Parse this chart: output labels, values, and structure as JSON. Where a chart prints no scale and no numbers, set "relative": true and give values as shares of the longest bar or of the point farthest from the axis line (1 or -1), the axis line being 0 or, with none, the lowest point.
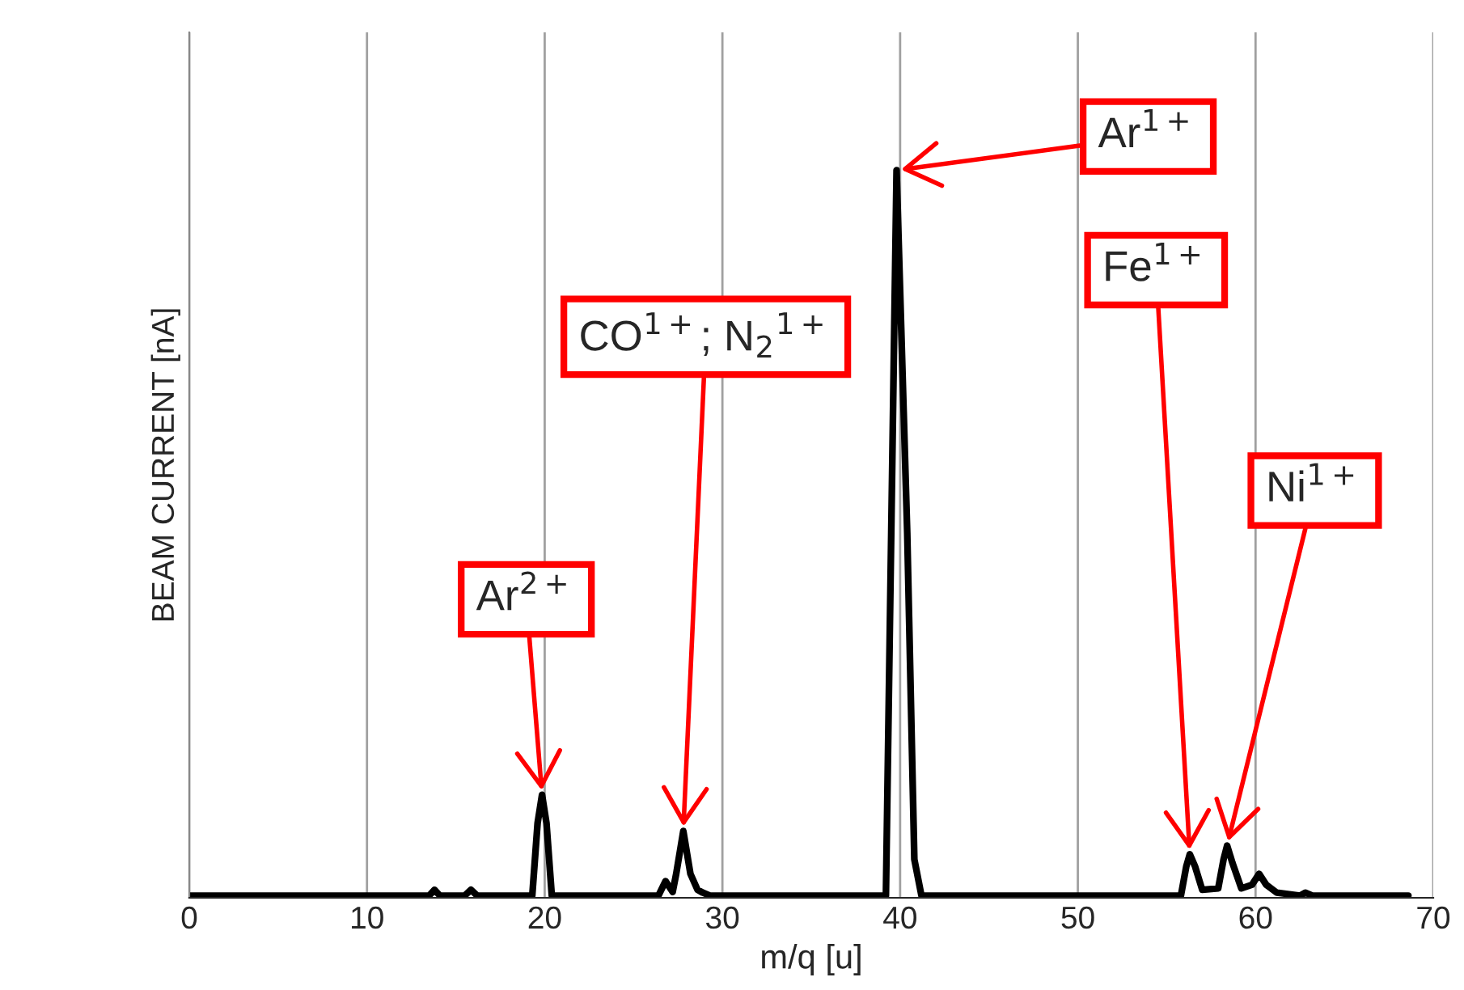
{
  "chart_data": {
    "type": "line",
    "xlabel": "m/q [u]",
    "ylabel": "BEAM CURRENT [nA]",
    "relative": true,
    "xlim": [
      0,
      70
    ],
    "xticks": [
      0,
      10,
      20,
      30,
      40,
      50,
      60,
      70
    ],
    "grid": "x",
    "marker": "none",
    "line_style": "solid",
    "series": [
      {
        "color": "#000000",
        "x": [
          0,
          13.5,
          13.8,
          14.1,
          15.5,
          15.85,
          16.2,
          19.3,
          19.6,
          19.85,
          20.1,
          20.4,
          26.4,
          26.8,
          27.2,
          27.4,
          27.8,
          28.2,
          28.6,
          28.9,
          29.3,
          39.2,
          39.5,
          39.8,
          40.4,
          40.8,
          41.2,
          55.8,
          56.1,
          56.3,
          56.6,
          57.0,
          57.9,
          58.2,
          58.4,
          58.7,
          59.2,
          59.8,
          60.2,
          60.6,
          61.2,
          62.5,
          62.8,
          63.2,
          68.6
        ],
        "values": [
          0,
          0,
          0.008,
          0,
          0,
          0.008,
          0,
          0,
          0.1,
          0.139,
          0.1,
          0,
          0,
          0.02,
          0.005,
          0.03,
          0.089,
          0.03,
          0.008,
          0.004,
          0,
          0,
          0.5,
          1,
          0.5,
          0.05,
          0,
          0,
          0.04,
          0.057,
          0.04,
          0.008,
          0.01,
          0.05,
          0.069,
          0.045,
          0.01,
          0.015,
          0.03,
          0.015,
          0.004,
          0,
          0.004,
          0,
          0
        ]
      }
    ],
    "annotations": [
      {
        "text": "Ar$^{2+}$",
        "x": 19.85,
        "y": 0.139
      },
      {
        "text": "CO$^{1+}$; N$_{2}$$^{1+}$",
        "x": 27.8,
        "y": 0.089
      },
      {
        "text": "Ar$^{1+}$",
        "x": 39.8,
        "y": 1
      },
      {
        "text": "Fe$^{1+}$",
        "x": 56.3,
        "y": 0.057
      },
      {
        "text": "Ni$^{1+}$",
        "x": 58.4,
        "y": 0.069
      }
    ]
  }
}
